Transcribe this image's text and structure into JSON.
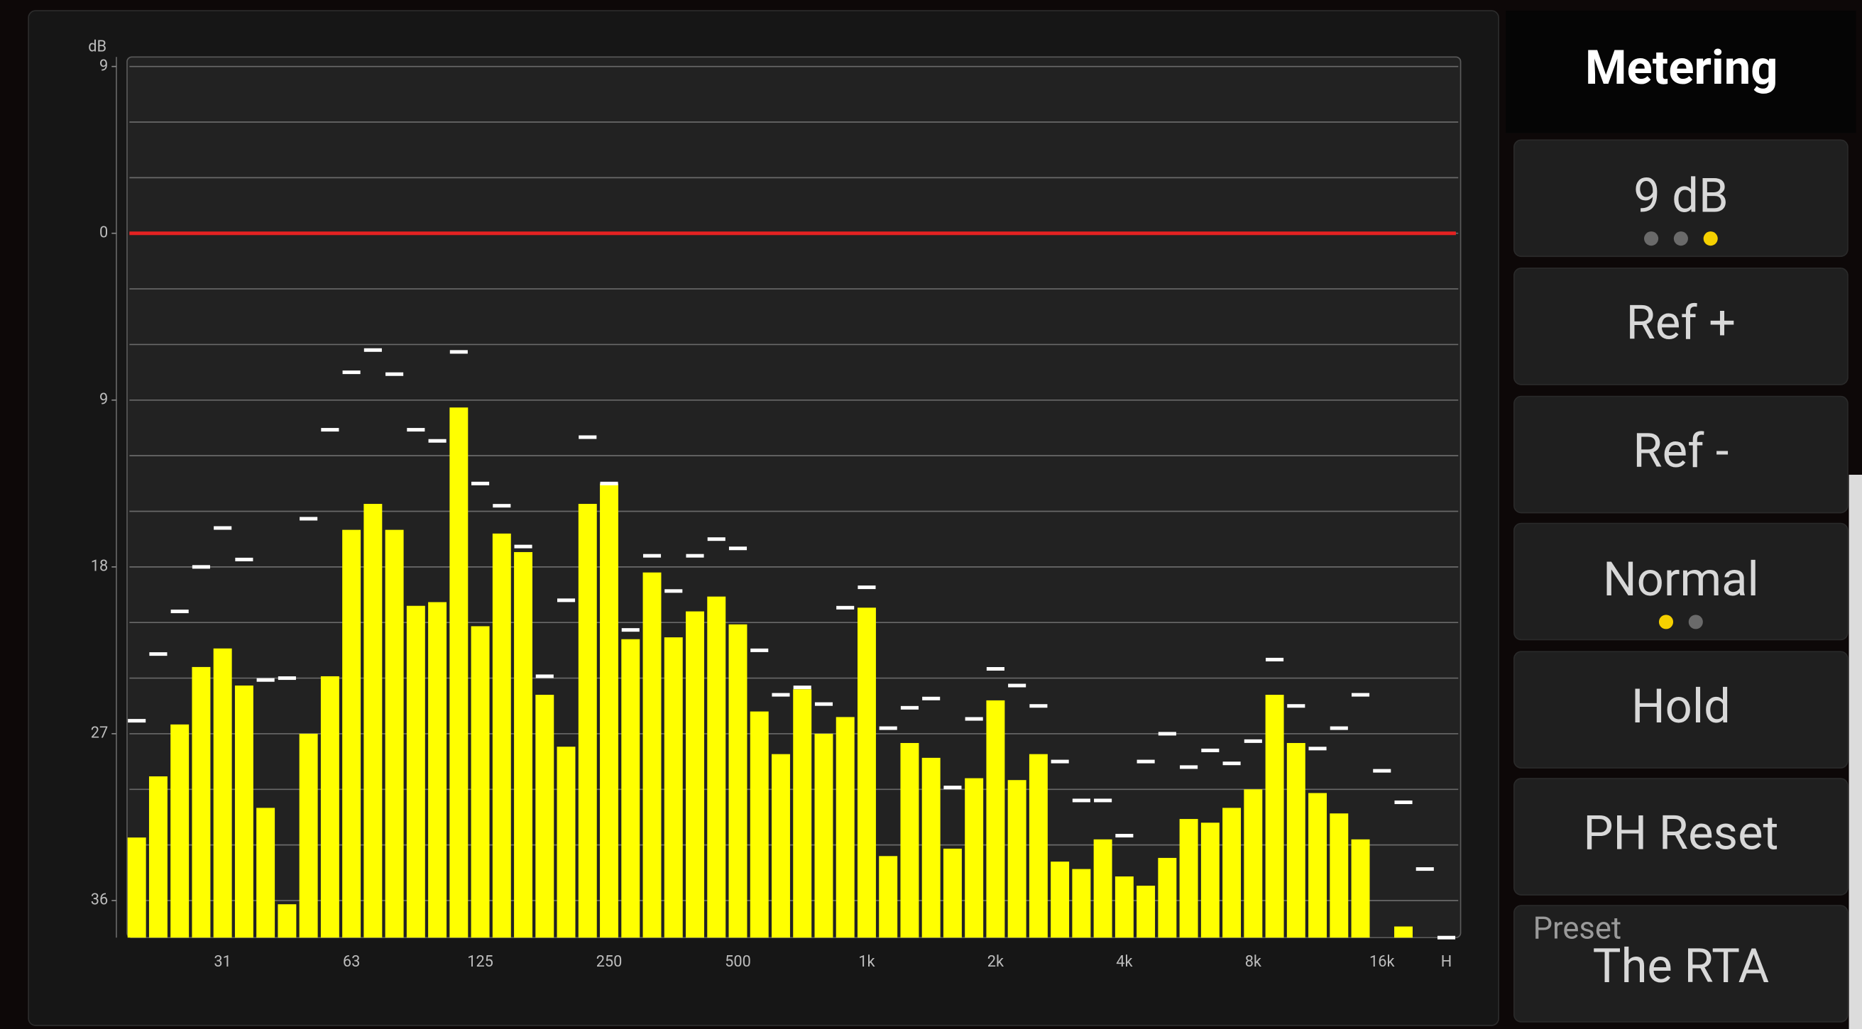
{
  "sidebar": {
    "title": "Metering",
    "buttons": [
      {
        "label": "9 dB",
        "indicator": {
          "count": 3,
          "active": 2
        }
      },
      {
        "label": "Ref +"
      },
      {
        "label": "Ref -"
      },
      {
        "label": "Normal",
        "indicator": {
          "count": 2,
          "active": 0
        }
      },
      {
        "label": "Hold"
      },
      {
        "label": "PH Reset"
      }
    ],
    "preset": {
      "caption": "Preset",
      "name": "The RTA"
    }
  },
  "chart_data": {
    "type": "bar",
    "y_unit": "dB",
    "categories": [
      null,
      null,
      null,
      null,
      "31",
      null,
      null,
      null,
      null,
      null,
      "63",
      null,
      null,
      null,
      null,
      null,
      "125",
      null,
      null,
      null,
      null,
      null,
      "250",
      null,
      null,
      null,
      null,
      null,
      "500",
      null,
      null,
      null,
      null,
      null,
      "1k",
      null,
      null,
      null,
      null,
      null,
      "2k",
      null,
      null,
      null,
      null,
      null,
      "4k",
      null,
      null,
      null,
      null,
      null,
      "8k",
      null,
      null,
      null,
      null,
      null,
      "16k",
      null,
      null,
      "H"
    ],
    "values": [
      -32.6,
      -29.3,
      -26.5,
      -23.4,
      -22.4,
      -24.4,
      -31.0,
      -36.2,
      -27.0,
      -23.9,
      -16.0,
      -14.6,
      -16.0,
      -20.1,
      -19.9,
      -9.4,
      -21.2,
      -16.2,
      -17.2,
      -24.9,
      -27.7,
      -14.6,
      -13.5,
      -21.9,
      -18.3,
      -21.8,
      -20.4,
      -19.6,
      -21.1,
      -25.8,
      -28.1,
      -24.6,
      -27.0,
      -26.1,
      -20.2,
      -33.6,
      -27.5,
      -28.3,
      -33.2,
      -29.4,
      -25.2,
      -29.5,
      -28.1,
      -33.9,
      -34.3,
      -32.7,
      -34.7,
      -35.2,
      -33.7,
      -31.6,
      -31.8,
      -31.0,
      -30.0,
      -24.9,
      -27.5,
      -30.2,
      -31.3,
      -32.7,
      -38,
      -37.4,
      -38,
      -38
    ],
    "peaks": [
      -26.3,
      -22.7,
      -20.4,
      -18.0,
      -15.9,
      -17.6,
      -24.1,
      -24.0,
      -15.4,
      -10.6,
      -7.5,
      -6.3,
      -7.6,
      -10.6,
      -11.2,
      -6.4,
      -13.5,
      -14.7,
      -16.9,
      -23.9,
      -19.8,
      -11.0,
      -13.5,
      -21.4,
      -17.4,
      -19.3,
      -17.4,
      -16.5,
      -17.0,
      -22.5,
      -24.9,
      -24.5,
      -25.4,
      -20.2,
      -19.1,
      -26.7,
      -25.6,
      -25.1,
      -29.9,
      -26.2,
      -23.5,
      -24.4,
      -25.5,
      -28.5,
      -30.6,
      -30.6,
      -32.5,
      -28.5,
      -27.0,
      -28.8,
      -27.9,
      -28.6,
      -27.4,
      -23.0,
      -25.5,
      -27.8,
      -26.7,
      -24.9,
      -29.0,
      -30.7,
      -34.3,
      -38
    ],
    "color": "#ffff00",
    "peak_color": "#ffffff",
    "ylim": [
      -38,
      9
    ],
    "yticks": [
      9,
      0,
      {
        "value": -9,
        "label": "9"
      },
      {
        "value": -18,
        "label": "18"
      },
      {
        "value": -27,
        "label": "27"
      },
      {
        "value": -36,
        "label": "36"
      }
    ],
    "minor_yticks": [
      6,
      3,
      -3,
      -6,
      -12,
      -15,
      -21,
      -24,
      -30,
      -33
    ],
    "reference_line": {
      "value": 0,
      "color": "#e42222"
    },
    "grid": true
  }
}
